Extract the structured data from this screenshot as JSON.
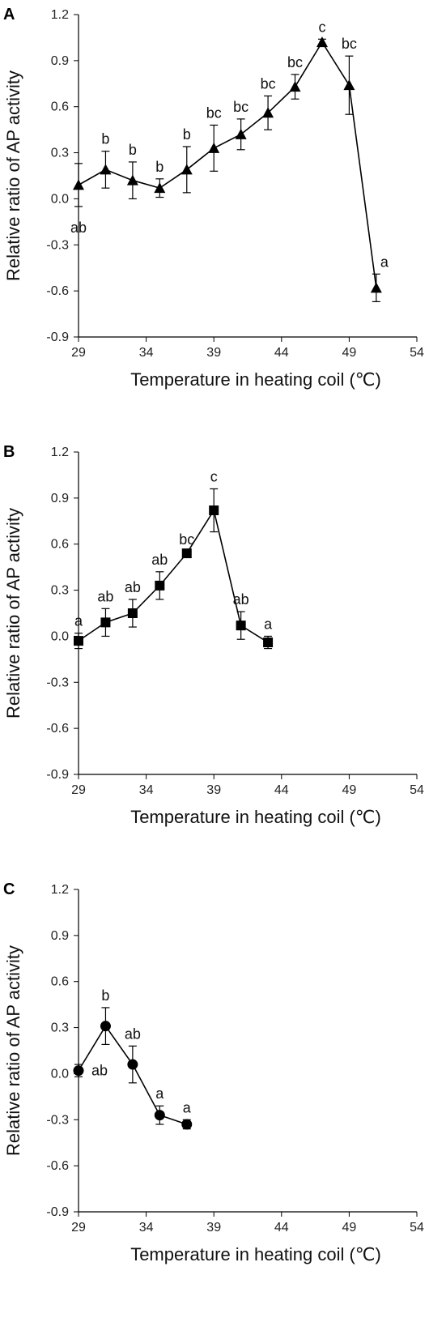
{
  "chart_data": [
    {
      "panel": "A",
      "type": "line",
      "marker": "triangle",
      "xlabel": "Temperature in heating coil (℃)",
      "ylabel": "Relative ratio of AP activity",
      "xlim": [
        29,
        54
      ],
      "ylim": [
        -0.9,
        1.2
      ],
      "xticks": [
        "29",
        "34",
        "39",
        "44",
        "49",
        "54"
      ],
      "yticks": [
        "-0.9",
        "-0.6",
        "-0.3",
        "0.0",
        "0.3",
        "0.6",
        "0.9",
        "1.2"
      ],
      "points": [
        {
          "x": 29,
          "y": 0.09,
          "err": 0.14,
          "label": "ab"
        },
        {
          "x": 31,
          "y": 0.19,
          "err": 0.12,
          "label": "b"
        },
        {
          "x": 33,
          "y": 0.12,
          "err": 0.12,
          "label": "b"
        },
        {
          "x": 35,
          "y": 0.07,
          "err": 0.06,
          "label": "b"
        },
        {
          "x": 37,
          "y": 0.19,
          "err": 0.15,
          "label": "b"
        },
        {
          "x": 39,
          "y": 0.33,
          "err": 0.15,
          "label": "bc"
        },
        {
          "x": 41,
          "y": 0.42,
          "err": 0.1,
          "label": "bc"
        },
        {
          "x": 43,
          "y": 0.56,
          "err": 0.11,
          "label": "bc"
        },
        {
          "x": 45,
          "y": 0.73,
          "err": 0.08,
          "label": "bc"
        },
        {
          "x": 47,
          "y": 1.02,
          "err": 0.02,
          "label": "c"
        },
        {
          "x": 49,
          "y": 0.74,
          "err": 0.19,
          "label": "bc"
        },
        {
          "x": 51,
          "y": -0.58,
          "err": 0.09,
          "label": "a"
        }
      ]
    },
    {
      "panel": "B",
      "type": "line",
      "marker": "square",
      "xlabel": "Temperature in heating coil (℃)",
      "ylabel": "Relative ratio of AP activity",
      "xlim": [
        29,
        54
      ],
      "ylim": [
        -0.9,
        1.2
      ],
      "xticks": [
        "29",
        "34",
        "39",
        "44",
        "49",
        "54"
      ],
      "yticks": [
        "-0.9",
        "-0.6",
        "-0.3",
        "0.0",
        "0.3",
        "0.6",
        "0.9",
        "1.2"
      ],
      "points": [
        {
          "x": 29,
          "y": -0.03,
          "err": 0.05,
          "label": "a"
        },
        {
          "x": 31,
          "y": 0.09,
          "err": 0.09,
          "label": "ab"
        },
        {
          "x": 33,
          "y": 0.15,
          "err": 0.09,
          "label": "ab"
        },
        {
          "x": 35,
          "y": 0.33,
          "err": 0.09,
          "label": "ab"
        },
        {
          "x": 37,
          "y": 0.54,
          "err": 0.01,
          "label": "bc"
        },
        {
          "x": 39,
          "y": 0.82,
          "err": 0.14,
          "label": "c"
        },
        {
          "x": 41,
          "y": 0.07,
          "err": 0.09,
          "label": "ab"
        },
        {
          "x": 43,
          "y": -0.04,
          "err": 0.04,
          "label": "a"
        }
      ]
    },
    {
      "panel": "C",
      "type": "line",
      "marker": "circle",
      "xlabel": "Temperature in heating coil (℃)",
      "ylabel": "Relative ratio of AP activity",
      "xlim": [
        29,
        54
      ],
      "ylim": [
        -0.9,
        1.2
      ],
      "xticks": [
        "29",
        "34",
        "39",
        "44",
        "49",
        "54"
      ],
      "yticks": [
        "-0.9",
        "-0.6",
        "-0.3",
        "0.0",
        "0.3",
        "0.6",
        "0.9",
        "1.2"
      ],
      "points": [
        {
          "x": 29,
          "y": 0.02,
          "err": 0.04,
          "label": "ab"
        },
        {
          "x": 31,
          "y": 0.31,
          "err": 0.12,
          "label": "b"
        },
        {
          "x": 33,
          "y": 0.06,
          "err": 0.12,
          "label": "ab"
        },
        {
          "x": 35,
          "y": -0.27,
          "err": 0.06,
          "label": "a"
        },
        {
          "x": 37,
          "y": -0.33,
          "err": 0.03,
          "label": "a"
        }
      ]
    }
  ]
}
